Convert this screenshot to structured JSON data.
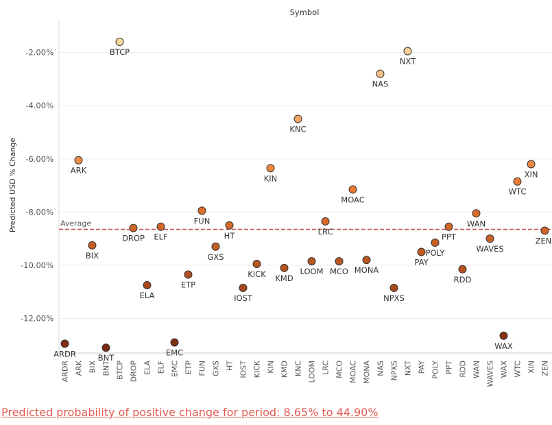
{
  "chart_data": {
    "type": "scatter",
    "title": "Symbol",
    "ylabel": "Predicted USD % Change",
    "xlabel": "",
    "ylim": [
      -13.3,
      -0.8
    ],
    "yticks": [
      -2,
      -4,
      -6,
      -8,
      -10,
      -12
    ],
    "ytick_labels": [
      "-2.00%",
      "-4.00%",
      "-6.00%",
      "-8.00%",
      "-10.00%",
      "-12.00%"
    ],
    "grid": "horizontal",
    "reference_line": {
      "label": "Average",
      "value": -8.65,
      "color": "#c0504d"
    },
    "color_scale": {
      "low": "#7a2a12",
      "mid": "#e8762c",
      "high": "#fcd9a0"
    },
    "categories": [
      "ARDR",
      "ARK",
      "BIX",
      "BNT",
      "BTCP",
      "DROP",
      "ELA",
      "ELF",
      "EMC",
      "ETP",
      "FUN",
      "GXS",
      "HT",
      "IOST",
      "KICK",
      "KIN",
      "KMD",
      "KNC",
      "LOOM",
      "LRC",
      "MCO",
      "MOAC",
      "MONA",
      "NAS",
      "NPXS",
      "NXT",
      "PAY",
      "POLY",
      "PPT",
      "RDD",
      "WAN",
      "WAVES",
      "WAX",
      "WTC",
      "XIN",
      "ZEN"
    ],
    "points": [
      {
        "x": "ARDR",
        "y": -12.95,
        "label": "ARDR"
      },
      {
        "x": "ARK",
        "y": -6.05,
        "label": "ARK"
      },
      {
        "x": "BIX",
        "y": -9.25,
        "label": "BIX"
      },
      {
        "x": "BNT",
        "y": -13.1,
        "label": "BNT"
      },
      {
        "x": "BTCP",
        "y": -1.6,
        "label": "BTCP"
      },
      {
        "x": "DROP",
        "y": -8.6,
        "label": "DROP"
      },
      {
        "x": "ELA",
        "y": -10.75,
        "label": "ELA"
      },
      {
        "x": "ELF",
        "y": -8.55,
        "label": "ELF"
      },
      {
        "x": "EMC",
        "y": -12.9,
        "label": "EMC"
      },
      {
        "x": "ETP",
        "y": -10.35,
        "label": "ETP"
      },
      {
        "x": "FUN",
        "y": -7.95,
        "label": "FUN"
      },
      {
        "x": "GXS",
        "y": -9.3,
        "label": "GXS"
      },
      {
        "x": "HT",
        "y": -8.5,
        "label": "HT"
      },
      {
        "x": "IOST",
        "y": -10.85,
        "label": "IOST"
      },
      {
        "x": "KICK",
        "y": -9.95,
        "label": "KICK"
      },
      {
        "x": "KIN",
        "y": -6.35,
        "label": "KIN"
      },
      {
        "x": "KMD",
        "y": -10.1,
        "label": "KMD"
      },
      {
        "x": "KNC",
        "y": -4.5,
        "label": "KNC"
      },
      {
        "x": "LOOM",
        "y": -9.85,
        "label": "LOOM"
      },
      {
        "x": "LRC",
        "y": -8.35,
        "label": "LRC"
      },
      {
        "x": "MCO",
        "y": -9.85,
        "label": "MCO"
      },
      {
        "x": "MOAC",
        "y": -7.15,
        "label": "MOAC"
      },
      {
        "x": "MONA",
        "y": -9.8,
        "label": "MONA"
      },
      {
        "x": "NAS",
        "y": -2.8,
        "label": "NAS"
      },
      {
        "x": "NPXS",
        "y": -10.85,
        "label": "NPXS"
      },
      {
        "x": "NXT",
        "y": -1.95,
        "label": "NXT"
      },
      {
        "x": "PAY",
        "y": -9.5,
        "label": "PAY"
      },
      {
        "x": "POLY",
        "y": -9.15,
        "label": "POLY"
      },
      {
        "x": "PPT",
        "y": -8.55,
        "label": "PPT"
      },
      {
        "x": "RDD",
        "y": -10.15,
        "label": "RDD"
      },
      {
        "x": "WAN",
        "y": -8.05,
        "label": "WAN"
      },
      {
        "x": "WAVES",
        "y": -9.0,
        "label": "WAVES"
      },
      {
        "x": "WAX",
        "y": -12.65,
        "label": "WAX"
      },
      {
        "x": "WTC",
        "y": -6.85,
        "label": "WTC"
      },
      {
        "x": "XIN",
        "y": -6.2,
        "label": "XIN"
      },
      {
        "x": "ZEN",
        "y": -8.7,
        "label": "ZEN"
      }
    ]
  },
  "footer": {
    "text": "Predicted probability of positive change for period:  8.65% to 44.90%"
  }
}
